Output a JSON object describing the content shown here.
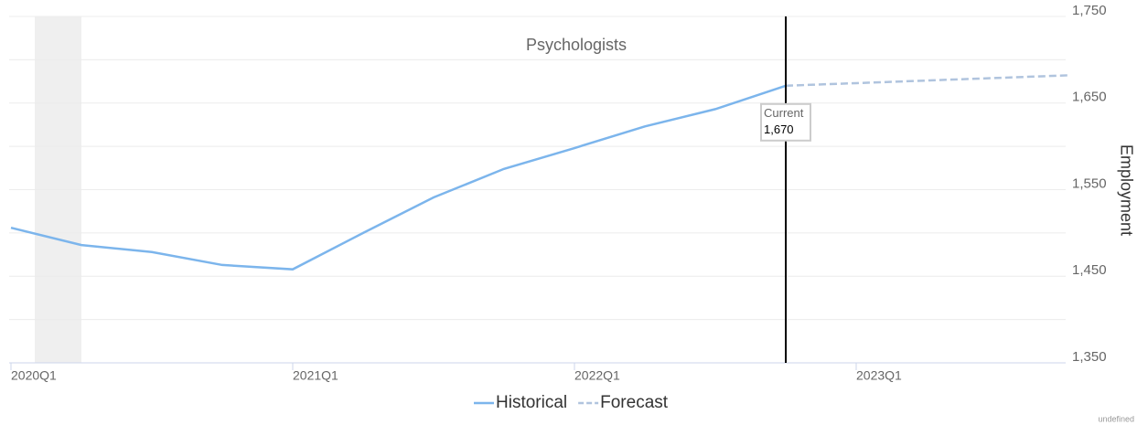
{
  "chart_data": {
    "type": "line",
    "title": "Psychologists",
    "y_label": "Employment",
    "footer": "undefined",
    "categories": [
      "2020Q1",
      null,
      null,
      null,
      "2021Q1",
      null,
      null,
      null,
      "2022Q1",
      null,
      null,
      null,
      "2023Q1",
      null,
      null,
      null
    ],
    "series": [
      {
        "name": "Historical",
        "color": "#7cb5ec",
        "dash": false,
        "values": [
          1506,
          1486,
          1478,
          1463,
          1458,
          1500,
          1541,
          1574,
          1598,
          1623,
          1643,
          1670,
          null,
          null,
          null,
          null
        ]
      },
      {
        "name": "Forecast",
        "color": "#b0c4de",
        "dash": true,
        "values": [
          null,
          null,
          null,
          null,
          null,
          null,
          null,
          null,
          null,
          null,
          null,
          1670,
          1673,
          1676,
          1679,
          1682
        ]
      }
    ],
    "current": {
      "label": "Current",
      "value": 1670,
      "value_label": "1,670"
    },
    "ylim": [
      1350,
      1750
    ],
    "yticks": [
      {
        "value": 1350,
        "label": "1,350"
      },
      {
        "value": 1400,
        "label": null
      },
      {
        "value": 1450,
        "label": "1,450"
      },
      {
        "value": 1500,
        "label": null
      },
      {
        "value": 1550,
        "label": "1,550"
      },
      {
        "value": 1600,
        "label": null
      },
      {
        "value": 1650,
        "label": "1,650"
      },
      {
        "value": 1700,
        "label": null
      },
      {
        "value": 1750,
        "label": "1,750"
      }
    ],
    "grid": true
  }
}
